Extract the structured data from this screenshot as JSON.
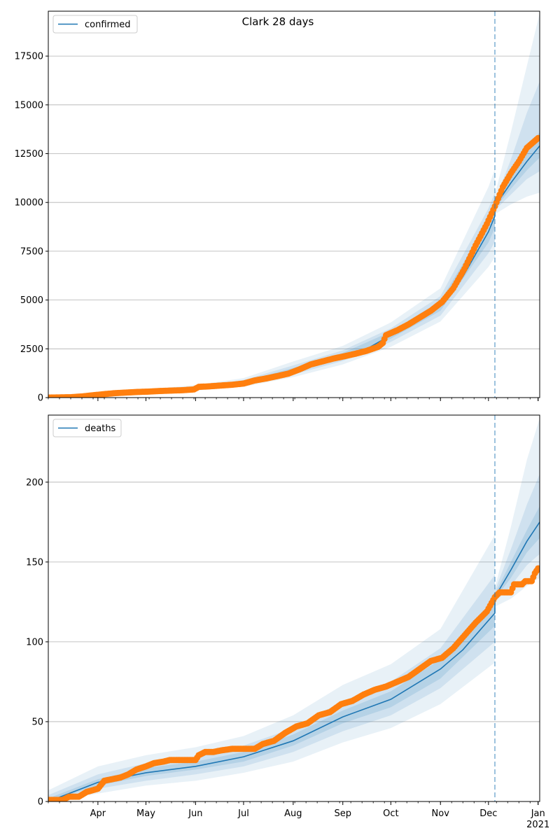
{
  "chart_data": [
    {
      "type": "line",
      "title": "Clark 28 days",
      "xlabel": "",
      "ylabel": "",
      "legend": {
        "entry": "confirmed",
        "placement": "top-left"
      },
      "ylim": [
        0,
        19800
      ],
      "yticks": [
        0,
        2500,
        5000,
        7500,
        10000,
        12500,
        15000,
        17500
      ],
      "grid": "horizontal",
      "forecast_start": "2020-12-05",
      "observed": [
        {
          "x": "2020-03-01",
          "y": 0
        },
        {
          "x": "2020-03-15",
          "y": 20
        },
        {
          "x": "2020-03-22",
          "y": 60
        },
        {
          "x": "2020-03-29",
          "y": 120
        },
        {
          "x": "2020-04-05",
          "y": 180
        },
        {
          "x": "2020-04-12",
          "y": 230
        },
        {
          "x": "2020-04-19",
          "y": 260
        },
        {
          "x": "2020-04-26",
          "y": 290
        },
        {
          "x": "2020-05-03",
          "y": 310
        },
        {
          "x": "2020-05-10",
          "y": 340
        },
        {
          "x": "2020-05-17",
          "y": 360
        },
        {
          "x": "2020-05-24",
          "y": 380
        },
        {
          "x": "2020-05-31",
          "y": 420
        },
        {
          "x": "2020-06-03",
          "y": 550
        },
        {
          "x": "2020-06-10",
          "y": 580
        },
        {
          "x": "2020-06-17",
          "y": 620
        },
        {
          "x": "2020-06-24",
          "y": 660
        },
        {
          "x": "2020-07-01",
          "y": 720
        },
        {
          "x": "2020-07-08",
          "y": 880
        },
        {
          "x": "2020-07-15",
          "y": 980
        },
        {
          "x": "2020-07-22",
          "y": 1100
        },
        {
          "x": "2020-07-29",
          "y": 1230
        },
        {
          "x": "2020-08-05",
          "y": 1450
        },
        {
          "x": "2020-08-12",
          "y": 1700
        },
        {
          "x": "2020-08-19",
          "y": 1850
        },
        {
          "x": "2020-08-26",
          "y": 2000
        },
        {
          "x": "2020-09-02",
          "y": 2120
        },
        {
          "x": "2020-09-09",
          "y": 2250
        },
        {
          "x": "2020-09-16",
          "y": 2400
        },
        {
          "x": "2020-09-23",
          "y": 2600
        },
        {
          "x": "2020-09-26",
          "y": 2800
        },
        {
          "x": "2020-09-28",
          "y": 3200
        },
        {
          "x": "2020-10-05",
          "y": 3450
        },
        {
          "x": "2020-10-12",
          "y": 3750
        },
        {
          "x": "2020-10-19",
          "y": 4100
        },
        {
          "x": "2020-10-26",
          "y": 4450
        },
        {
          "x": "2020-11-02",
          "y": 4900
        },
        {
          "x": "2020-11-09",
          "y": 5600
        },
        {
          "x": "2020-11-16",
          "y": 6600
        },
        {
          "x": "2020-11-23",
          "y": 7800
        },
        {
          "x": "2020-11-30",
          "y": 8900
        },
        {
          "x": "2020-12-05",
          "y": 9800
        },
        {
          "x": "2020-12-10",
          "y": 10800
        },
        {
          "x": "2020-12-15",
          "y": 11500
        },
        {
          "x": "2020-12-20",
          "y": 12100
        },
        {
          "x": "2020-12-25",
          "y": 12800
        },
        {
          "x": "2021-01-01",
          "y": 13300
        }
      ],
      "prediction": [
        {
          "x": "2020-03-01",
          "y": 0
        },
        {
          "x": "2020-04-01",
          "y": 150
        },
        {
          "x": "2020-05-01",
          "y": 300
        },
        {
          "x": "2020-06-01",
          "y": 480
        },
        {
          "x": "2020-07-01",
          "y": 760
        },
        {
          "x": "2020-08-01",
          "y": 1400
        },
        {
          "x": "2020-09-01",
          "y": 2150
        },
        {
          "x": "2020-09-15",
          "y": 2450
        },
        {
          "x": "2020-10-01",
          "y": 3200
        },
        {
          "x": "2020-10-15",
          "y": 3850
        },
        {
          "x": "2020-11-01",
          "y": 4700
        },
        {
          "x": "2020-11-15",
          "y": 6200
        },
        {
          "x": "2020-12-01",
          "y": 8500
        },
        {
          "x": "2020-12-05",
          "y": 9300
        },
        {
          "x": "2020-12-05",
          "y": 9800
        },
        {
          "x": "2020-12-15",
          "y": 11000
        },
        {
          "x": "2020-12-25",
          "y": 12100
        },
        {
          "x": "2021-01-02",
          "y": 12900
        }
      ],
      "bands": [
        [
          {
            "x": "2020-03-01",
            "lo": 0,
            "hi": 80
          },
          {
            "x": "2020-04-01",
            "lo": 60,
            "hi": 260
          },
          {
            "x": "2020-05-01",
            "lo": 200,
            "hi": 420
          },
          {
            "x": "2020-06-01",
            "lo": 360,
            "hi": 640
          },
          {
            "x": "2020-07-01",
            "lo": 560,
            "hi": 1000
          },
          {
            "x": "2020-08-01",
            "lo": 1050,
            "hi": 1850
          },
          {
            "x": "2020-09-01",
            "lo": 1700,
            "hi": 2650
          },
          {
            "x": "2020-10-01",
            "lo": 2600,
            "hi": 3850
          },
          {
            "x": "2020-11-01",
            "lo": 3900,
            "hi": 5600
          },
          {
            "x": "2020-12-01",
            "lo": 6700,
            "hi": 10800
          },
          {
            "x": "2020-12-05",
            "lo": 7200,
            "hi": 11700
          },
          {
            "x": "2020-12-05",
            "lo": 9400,
            "hi": 10400
          },
          {
            "x": "2020-12-15",
            "lo": 9900,
            "hi": 13600
          },
          {
            "x": "2020-12-25",
            "lo": 10300,
            "hi": 17000
          },
          {
            "x": "2021-01-02",
            "lo": 10500,
            "hi": 19700
          }
        ],
        [
          {
            "x": "2020-03-01",
            "lo": 0,
            "hi": 40
          },
          {
            "x": "2020-04-01",
            "lo": 90,
            "hi": 210
          },
          {
            "x": "2020-05-01",
            "lo": 240,
            "hi": 370
          },
          {
            "x": "2020-06-01",
            "lo": 400,
            "hi": 570
          },
          {
            "x": "2020-07-01",
            "lo": 630,
            "hi": 900
          },
          {
            "x": "2020-08-01",
            "lo": 1180,
            "hi": 1650
          },
          {
            "x": "2020-09-01",
            "lo": 1880,
            "hi": 2420
          },
          {
            "x": "2020-10-01",
            "lo": 2850,
            "hi": 3550
          },
          {
            "x": "2020-11-01",
            "lo": 4200,
            "hi": 5200
          },
          {
            "x": "2020-12-01",
            "lo": 7400,
            "hi": 9700
          },
          {
            "x": "2020-12-05",
            "lo": 8000,
            "hi": 10500
          },
          {
            "x": "2020-12-05",
            "lo": 9600,
            "hi": 10100
          },
          {
            "x": "2020-12-15",
            "lo": 10400,
            "hi": 12200
          },
          {
            "x": "2020-12-25",
            "lo": 11200,
            "hi": 14600
          },
          {
            "x": "2021-01-02",
            "lo": 11600,
            "hi": 16200
          }
        ],
        [
          {
            "x": "2020-03-01",
            "lo": 0,
            "hi": 20
          },
          {
            "x": "2020-04-01",
            "lo": 120,
            "hi": 180
          },
          {
            "x": "2020-05-01",
            "lo": 265,
            "hi": 335
          },
          {
            "x": "2020-06-01",
            "lo": 435,
            "hi": 525
          },
          {
            "x": "2020-07-01",
            "lo": 690,
            "hi": 830
          },
          {
            "x": "2020-08-01",
            "lo": 1290,
            "hi": 1520
          },
          {
            "x": "2020-09-01",
            "lo": 2010,
            "hi": 2290
          },
          {
            "x": "2020-10-01",
            "lo": 3020,
            "hi": 3380
          },
          {
            "x": "2020-11-01",
            "lo": 4450,
            "hi": 4950
          },
          {
            "x": "2020-12-01",
            "lo": 7950,
            "hi": 9050
          },
          {
            "x": "2020-12-05",
            "lo": 8700,
            "hi": 9900
          },
          {
            "x": "2020-12-05",
            "lo": 9700,
            "hi": 9900
          },
          {
            "x": "2020-12-15",
            "lo": 10700,
            "hi": 11400
          },
          {
            "x": "2020-12-25",
            "lo": 11650,
            "hi": 12700
          },
          {
            "x": "2021-01-02",
            "lo": 12300,
            "hi": 13600
          }
        ]
      ]
    },
    {
      "type": "line",
      "title": "",
      "xlabel": "",
      "ylabel": "",
      "legend": {
        "entry": "deaths",
        "placement": "top-left"
      },
      "ylim": [
        0,
        242
      ],
      "yticks": [
        0,
        50,
        100,
        150,
        200
      ],
      "grid": "horizontal",
      "forecast_start": "2020-12-05",
      "xticks": [
        "Apr",
        "May",
        "Jun",
        "Jul",
        "Aug",
        "Sep",
        "Oct",
        "Nov",
        "Dec",
        "Jan"
      ],
      "xticks_year": "2021",
      "observed": [
        {
          "x": "2020-03-01",
          "y": 1
        },
        {
          "x": "2020-03-10",
          "y": 1
        },
        {
          "x": "2020-03-14",
          "y": 3
        },
        {
          "x": "2020-03-20",
          "y": 3
        },
        {
          "x": "2020-03-25",
          "y": 6
        },
        {
          "x": "2020-04-01",
          "y": 8
        },
        {
          "x": "2020-04-05",
          "y": 13
        },
        {
          "x": "2020-04-10",
          "y": 14
        },
        {
          "x": "2020-04-15",
          "y": 15
        },
        {
          "x": "2020-04-20",
          "y": 17
        },
        {
          "x": "2020-04-25",
          "y": 20
        },
        {
          "x": "2020-05-01",
          "y": 22
        },
        {
          "x": "2020-05-06",
          "y": 24
        },
        {
          "x": "2020-05-12",
          "y": 25
        },
        {
          "x": "2020-05-16",
          "y": 26
        },
        {
          "x": "2020-05-24",
          "y": 26
        },
        {
          "x": "2020-06-01",
          "y": 26
        },
        {
          "x": "2020-06-03",
          "y": 29
        },
        {
          "x": "2020-06-07",
          "y": 31
        },
        {
          "x": "2020-06-12",
          "y": 31
        },
        {
          "x": "2020-06-17",
          "y": 32
        },
        {
          "x": "2020-06-24",
          "y": 33
        },
        {
          "x": "2020-07-01",
          "y": 33
        },
        {
          "x": "2020-07-08",
          "y": 33
        },
        {
          "x": "2020-07-13",
          "y": 36
        },
        {
          "x": "2020-07-20",
          "y": 38
        },
        {
          "x": "2020-07-27",
          "y": 43
        },
        {
          "x": "2020-08-03",
          "y": 47
        },
        {
          "x": "2020-08-10",
          "y": 49
        },
        {
          "x": "2020-08-17",
          "y": 54
        },
        {
          "x": "2020-08-24",
          "y": 56
        },
        {
          "x": "2020-08-31",
          "y": 61
        },
        {
          "x": "2020-09-07",
          "y": 63
        },
        {
          "x": "2020-09-14",
          "y": 67
        },
        {
          "x": "2020-09-21",
          "y": 70
        },
        {
          "x": "2020-09-28",
          "y": 72
        },
        {
          "x": "2020-10-05",
          "y": 75
        },
        {
          "x": "2020-10-12",
          "y": 78
        },
        {
          "x": "2020-10-19",
          "y": 83
        },
        {
          "x": "2020-10-26",
          "y": 88
        },
        {
          "x": "2020-11-02",
          "y": 90
        },
        {
          "x": "2020-11-09",
          "y": 96
        },
        {
          "x": "2020-11-16",
          "y": 104
        },
        {
          "x": "2020-11-23",
          "y": 112
        },
        {
          "x": "2020-11-30",
          "y": 119
        },
        {
          "x": "2020-12-05",
          "y": 128
        },
        {
          "x": "2020-12-08",
          "y": 131
        },
        {
          "x": "2020-12-15",
          "y": 131
        },
        {
          "x": "2020-12-17",
          "y": 136
        },
        {
          "x": "2020-12-22",
          "y": 136
        },
        {
          "x": "2020-12-24",
          "y": 138
        },
        {
          "x": "2020-12-28",
          "y": 138
        },
        {
          "x": "2020-12-30",
          "y": 143
        },
        {
          "x": "2021-01-01",
          "y": 146
        }
      ],
      "prediction": [
        {
          "x": "2020-03-01",
          "y": 0
        },
        {
          "x": "2020-04-01",
          "y": 12
        },
        {
          "x": "2020-05-01",
          "y": 18
        },
        {
          "x": "2020-06-01",
          "y": 22
        },
        {
          "x": "2020-07-01",
          "y": 28
        },
        {
          "x": "2020-08-01",
          "y": 38
        },
        {
          "x": "2020-09-01",
          "y": 53
        },
        {
          "x": "2020-10-01",
          "y": 64
        },
        {
          "x": "2020-11-01",
          "y": 83
        },
        {
          "x": "2020-11-15",
          "y": 95
        },
        {
          "x": "2020-12-05",
          "y": 118
        },
        {
          "x": "2020-12-05",
          "y": 128
        },
        {
          "x": "2020-12-15",
          "y": 145
        },
        {
          "x": "2020-12-25",
          "y": 163
        },
        {
          "x": "2021-01-02",
          "y": 175
        }
      ],
      "bands": [
        [
          {
            "x": "2020-03-01",
            "lo": 0,
            "hi": 7
          },
          {
            "x": "2020-04-01",
            "lo": 5,
            "hi": 22
          },
          {
            "x": "2020-05-01",
            "lo": 10,
            "hi": 29
          },
          {
            "x": "2020-06-01",
            "lo": 13,
            "hi": 34
          },
          {
            "x": "2020-07-01",
            "lo": 18,
            "hi": 41
          },
          {
            "x": "2020-08-01",
            "lo": 25,
            "hi": 54
          },
          {
            "x": "2020-09-01",
            "lo": 37,
            "hi": 73
          },
          {
            "x": "2020-10-01",
            "lo": 46,
            "hi": 86
          },
          {
            "x": "2020-11-01",
            "lo": 61,
            "hi": 108
          },
          {
            "x": "2020-12-05",
            "lo": 87,
            "hi": 167
          },
          {
            "x": "2020-12-05",
            "lo": 122,
            "hi": 134
          },
          {
            "x": "2020-12-15",
            "lo": 127,
            "hi": 172
          },
          {
            "x": "2020-12-25",
            "lo": 135,
            "hi": 214
          },
          {
            "x": "2021-01-02",
            "lo": 140,
            "hi": 240
          }
        ],
        [
          {
            "x": "2020-03-01",
            "lo": 0,
            "hi": 4
          },
          {
            "x": "2020-04-01",
            "lo": 8,
            "hi": 17
          },
          {
            "x": "2020-05-01",
            "lo": 13,
            "hi": 24
          },
          {
            "x": "2020-06-01",
            "lo": 17,
            "hi": 28
          },
          {
            "x": "2020-07-01",
            "lo": 22,
            "hi": 35
          },
          {
            "x": "2020-08-01",
            "lo": 31,
            "hi": 46
          },
          {
            "x": "2020-09-01",
            "lo": 44,
            "hi": 63
          },
          {
            "x": "2020-10-01",
            "lo": 54,
            "hi": 75
          },
          {
            "x": "2020-11-01",
            "lo": 71,
            "hi": 96
          },
          {
            "x": "2020-12-05",
            "lo": 100,
            "hi": 142
          },
          {
            "x": "2020-12-05",
            "lo": 125,
            "hi": 132
          },
          {
            "x": "2020-12-15",
            "lo": 135,
            "hi": 158
          },
          {
            "x": "2020-12-25",
            "lo": 148,
            "hi": 186
          },
          {
            "x": "2021-01-02",
            "lo": 155,
            "hi": 205
          }
        ],
        [
          {
            "x": "2020-03-01",
            "lo": 0,
            "hi": 2
          },
          {
            "x": "2020-04-01",
            "lo": 10,
            "hi": 14
          },
          {
            "x": "2020-05-01",
            "lo": 16,
            "hi": 21
          },
          {
            "x": "2020-06-01",
            "lo": 20,
            "hi": 25
          },
          {
            "x": "2020-07-01",
            "lo": 25,
            "hi": 31
          },
          {
            "x": "2020-08-01",
            "lo": 35,
            "hi": 42
          },
          {
            "x": "2020-09-01",
            "lo": 49,
            "hi": 57
          },
          {
            "x": "2020-10-01",
            "lo": 59,
            "hi": 69
          },
          {
            "x": "2020-11-01",
            "lo": 77,
            "hi": 89
          },
          {
            "x": "2020-12-05",
            "lo": 110,
            "hi": 127
          },
          {
            "x": "2020-12-05",
            "lo": 127,
            "hi": 130
          },
          {
            "x": "2020-12-15",
            "lo": 140,
            "hi": 150
          },
          {
            "x": "2020-12-25",
            "lo": 156,
            "hi": 170
          },
          {
            "x": "2021-01-02",
            "lo": 165,
            "hi": 185
          }
        ]
      ]
    }
  ],
  "colors": {
    "observed": "#ff7f0e",
    "prediction": "#1f77b4",
    "band": "#1f77b4",
    "grid": "#b0b0b0",
    "forecast_line": "#1f77b4"
  }
}
